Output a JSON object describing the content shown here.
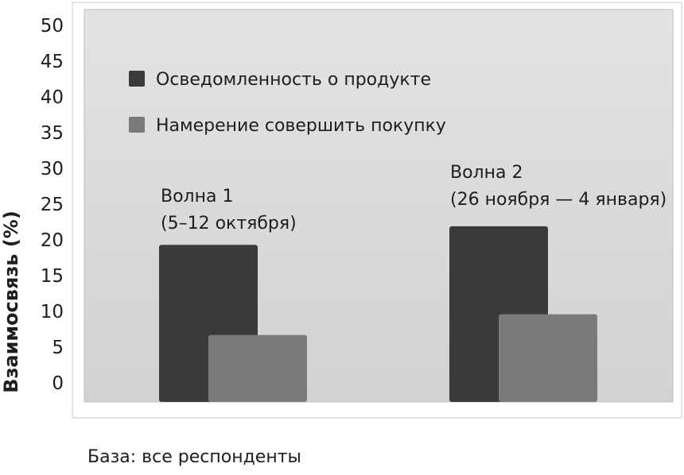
{
  "chart_data": {
    "type": "bar",
    "title": "",
    "xlabel": "",
    "ylabel": "Взаимосвязь (%)",
    "ylim": [
      0,
      50
    ],
    "yticks": [
      0,
      5,
      10,
      15,
      20,
      25,
      30,
      35,
      40,
      45,
      50
    ],
    "grid": false,
    "legend_position": "top-left",
    "categories": [
      {
        "line1": "Волна 1",
        "line2": "(5–12 октября)"
      },
      {
        "line1": "Волна 2",
        "line2": "(26 ноября — 4 января)"
      }
    ],
    "series": [
      {
        "name": "Осведомленность о продукте",
        "values": [
          19.3,
          21.9
        ],
        "color": "#3a3a3a"
      },
      {
        "name": "Намерение совершить покупку",
        "values": [
          6.7,
          9.6
        ],
        "color": "#7a7a7a"
      }
    ]
  },
  "footnote": "База: все респонденты"
}
